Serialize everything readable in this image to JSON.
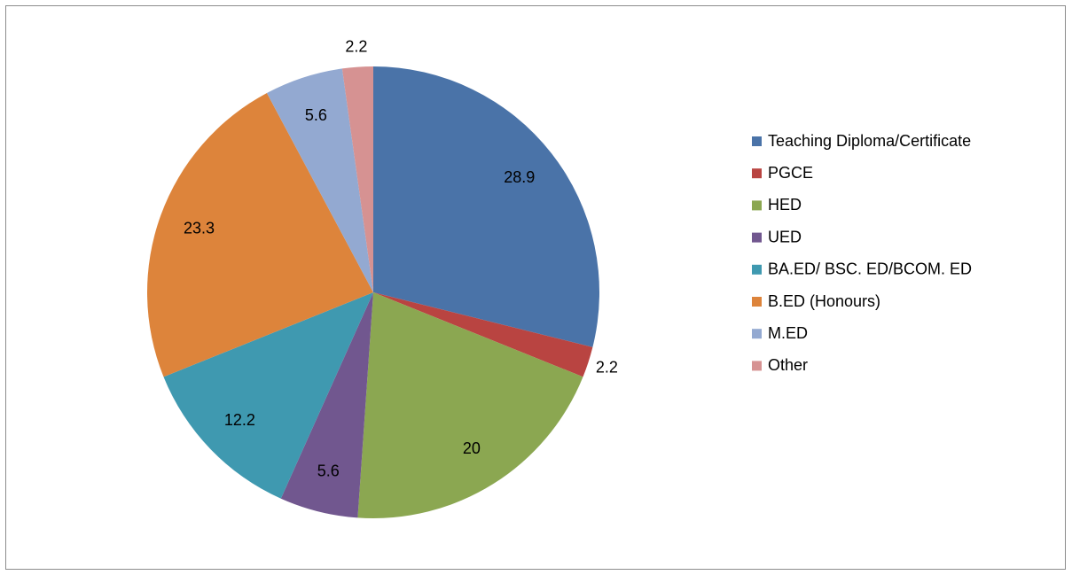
{
  "chart_data": {
    "type": "pie",
    "categories": [
      "Teaching Diploma/Certificate",
      "PGCE",
      "HED",
      "UED",
      "BA.ED/ BSC. ED/BCOM. ED",
      "B.ED (Honours)",
      "M.ED",
      "Other"
    ],
    "values": [
      28.9,
      2.2,
      20,
      5.6,
      12.2,
      23.3,
      5.6,
      2.2
    ],
    "colors": [
      "#4a73a8",
      "#b94441",
      "#8ba751",
      "#71578f",
      "#3f99b0",
      "#dd843b",
      "#93a9d1",
      "#d69292"
    ],
    "legend": "right"
  }
}
